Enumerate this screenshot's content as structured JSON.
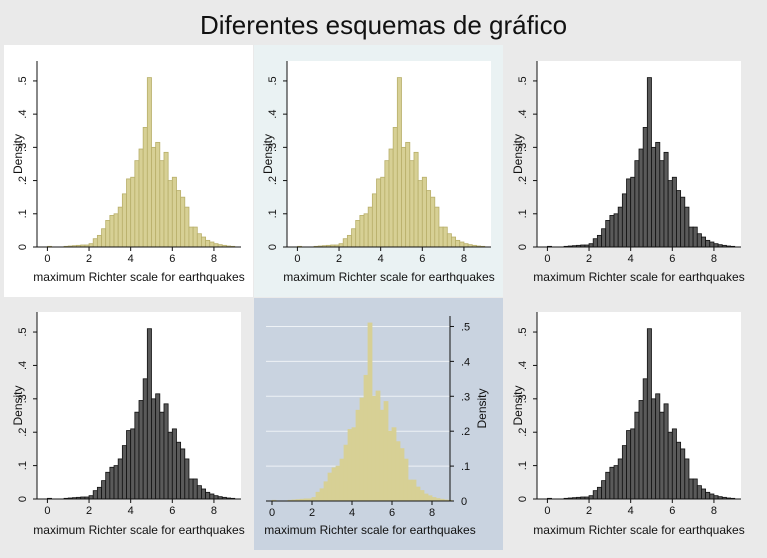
{
  "title": "Diferentes esquemas de gráfico",
  "chart_data": [
    {
      "type": "bar",
      "scheme": "s2color (white background, khaki bars)",
      "xlabel": "maximum Richter scale for earthquakes",
      "ylabel": "Density",
      "xticks": [
        "0",
        "2",
        "4",
        "6",
        "8"
      ],
      "yticks": [
        ".5",
        ".4",
        ".3",
        ".2",
        ".1",
        "0"
      ],
      "xlim": [
        -0.5,
        9.3
      ],
      "ylim": [
        0,
        0.56
      ],
      "yaxis_side": "left",
      "grid": false,
      "colors": {
        "panel": "#ffffff",
        "plot": "#ffffff",
        "bar_fill": "#d7d095",
        "bar_stroke": "#b8af6a",
        "text": "#111111"
      },
      "bin_width": 0.2,
      "bins_start": [
        0.0,
        0.2,
        0.4,
        0.6,
        0.8,
        1.0,
        1.2,
        1.4,
        1.6,
        1.8,
        2.0,
        2.2,
        2.4,
        2.6,
        2.8,
        3.0,
        3.2,
        3.4,
        3.6,
        3.8,
        4.0,
        4.2,
        4.4,
        4.6,
        4.8,
        5.0,
        5.2,
        5.4,
        5.6,
        5.8,
        6.0,
        6.2,
        6.4,
        6.6,
        6.8,
        7.0,
        7.2,
        7.4,
        7.6,
        7.8,
        8.0,
        8.2,
        8.4,
        8.6,
        8.8
      ],
      "density": [
        0.002,
        0.0,
        0.0,
        0.0,
        0.002,
        0.003,
        0.004,
        0.005,
        0.006,
        0.006,
        0.01,
        0.025,
        0.035,
        0.055,
        0.08,
        0.095,
        0.1,
        0.12,
        0.16,
        0.205,
        0.21,
        0.26,
        0.295,
        0.36,
        0.51,
        0.3,
        0.315,
        0.26,
        0.285,
        0.2,
        0.21,
        0.17,
        0.15,
        0.12,
        0.06,
        0.06,
        0.04,
        0.03,
        0.02,
        0.015,
        0.01,
        0.007,
        0.005,
        0.003,
        0.002
      ]
    },
    {
      "type": "bar",
      "scheme": "s2color (light blue background, khaki bars)",
      "xlabel": "maximum Richter scale for earthquakes",
      "ylabel": "Density",
      "xticks": [
        "0",
        "2",
        "4",
        "6",
        "8"
      ],
      "yticks": [
        ".5",
        ".4",
        ".3",
        ".2",
        ".1",
        "0"
      ],
      "xlim": [
        -0.5,
        9.3
      ],
      "ylim": [
        0,
        0.56
      ],
      "yaxis_side": "left",
      "grid": false,
      "colors": {
        "panel": "#eaf2f3",
        "plot": "#ffffff",
        "bar_fill": "#d7d095",
        "bar_stroke": "#b8af6a",
        "text": "#111111"
      },
      "bin_width": 0.2,
      "bins_start": [
        0.0,
        0.2,
        0.4,
        0.6,
        0.8,
        1.0,
        1.2,
        1.4,
        1.6,
        1.8,
        2.0,
        2.2,
        2.4,
        2.6,
        2.8,
        3.0,
        3.2,
        3.4,
        3.6,
        3.8,
        4.0,
        4.2,
        4.4,
        4.6,
        4.8,
        5.0,
        5.2,
        5.4,
        5.6,
        5.8,
        6.0,
        6.2,
        6.4,
        6.6,
        6.8,
        7.0,
        7.2,
        7.4,
        7.6,
        7.8,
        8.0,
        8.2,
        8.4,
        8.6,
        8.8
      ],
      "density": [
        0.002,
        0.0,
        0.0,
        0.0,
        0.002,
        0.003,
        0.004,
        0.005,
        0.006,
        0.006,
        0.01,
        0.025,
        0.035,
        0.055,
        0.08,
        0.095,
        0.1,
        0.12,
        0.16,
        0.205,
        0.21,
        0.26,
        0.295,
        0.36,
        0.51,
        0.3,
        0.315,
        0.26,
        0.285,
        0.2,
        0.21,
        0.17,
        0.15,
        0.12,
        0.06,
        0.06,
        0.04,
        0.03,
        0.02,
        0.015,
        0.01,
        0.007,
        0.005,
        0.003,
        0.002
      ]
    },
    {
      "type": "bar",
      "scheme": "s1mono (gray background, dark bars)",
      "xlabel": "maximum Richter scale for earthquakes",
      "ylabel": "Density",
      "xticks": [
        "0",
        "2",
        "4",
        "6",
        "8"
      ],
      "yticks": [
        ".5",
        ".4",
        ".3",
        ".2",
        ".1",
        "0"
      ],
      "xlim": [
        -0.5,
        9.3
      ],
      "ylim": [
        0,
        0.56
      ],
      "yaxis_side": "left",
      "grid": false,
      "colors": {
        "panel": "#eaeaea",
        "plot": "#ffffff",
        "bar_fill": "#5a5a5a",
        "bar_stroke": "#111111",
        "text": "#111111"
      },
      "bin_width": 0.2,
      "bins_start": [
        0.0,
        0.2,
        0.4,
        0.6,
        0.8,
        1.0,
        1.2,
        1.4,
        1.6,
        1.8,
        2.0,
        2.2,
        2.4,
        2.6,
        2.8,
        3.0,
        3.2,
        3.4,
        3.6,
        3.8,
        4.0,
        4.2,
        4.4,
        4.6,
        4.8,
        5.0,
        5.2,
        5.4,
        5.6,
        5.8,
        6.0,
        6.2,
        6.4,
        6.6,
        6.8,
        7.0,
        7.2,
        7.4,
        7.6,
        7.8,
        8.0,
        8.2,
        8.4,
        8.6,
        8.8
      ],
      "density": [
        0.002,
        0.0,
        0.0,
        0.0,
        0.002,
        0.003,
        0.004,
        0.005,
        0.006,
        0.006,
        0.01,
        0.025,
        0.035,
        0.055,
        0.08,
        0.095,
        0.1,
        0.12,
        0.16,
        0.205,
        0.21,
        0.26,
        0.295,
        0.36,
        0.51,
        0.3,
        0.315,
        0.26,
        0.285,
        0.2,
        0.21,
        0.17,
        0.15,
        0.12,
        0.06,
        0.06,
        0.04,
        0.03,
        0.02,
        0.015,
        0.01,
        0.007,
        0.005,
        0.003,
        0.002
      ]
    },
    {
      "type": "bar",
      "scheme": "s2mono (gray background, dark bars)",
      "xlabel": "maximum Richter scale for earthquakes",
      "ylabel": "Density",
      "xticks": [
        "0",
        "2",
        "4",
        "6",
        "8"
      ],
      "yticks": [
        ".5",
        ".4",
        ".3",
        ".2",
        ".1",
        "0"
      ],
      "xlim": [
        -0.5,
        9.3
      ],
      "ylim": [
        0,
        0.56
      ],
      "yaxis_side": "left",
      "grid": false,
      "colors": {
        "panel": "#eaeaea",
        "plot": "#ffffff",
        "bar_fill": "#5a5a5a",
        "bar_stroke": "#111111",
        "text": "#111111"
      },
      "bin_width": 0.2,
      "bins_start": [
        0.0,
        0.2,
        0.4,
        0.6,
        0.8,
        1.0,
        1.2,
        1.4,
        1.6,
        1.8,
        2.0,
        2.2,
        2.4,
        2.6,
        2.8,
        3.0,
        3.2,
        3.4,
        3.6,
        3.8,
        4.0,
        4.2,
        4.4,
        4.6,
        4.8,
        5.0,
        5.2,
        5.4,
        5.6,
        5.8,
        6.0,
        6.2,
        6.4,
        6.6,
        6.8,
        7.0,
        7.2,
        7.4,
        7.6,
        7.8,
        8.0,
        8.2,
        8.4,
        8.6,
        8.8
      ],
      "density": [
        0.002,
        0.0,
        0.0,
        0.0,
        0.002,
        0.003,
        0.004,
        0.005,
        0.006,
        0.006,
        0.01,
        0.025,
        0.035,
        0.055,
        0.08,
        0.095,
        0.1,
        0.12,
        0.16,
        0.205,
        0.21,
        0.26,
        0.295,
        0.36,
        0.51,
        0.3,
        0.315,
        0.26,
        0.285,
        0.2,
        0.21,
        0.17,
        0.15,
        0.12,
        0.06,
        0.06,
        0.04,
        0.03,
        0.02,
        0.015,
        0.01,
        0.007,
        0.005,
        0.003,
        0.002
      ]
    },
    {
      "type": "bar",
      "scheme": "economist (blue-gray background, gridlines, right y-axis)",
      "xlabel": "maximum Richter scale for earthquakes",
      "ylabel": "Density",
      "xticks": [
        "0",
        "2",
        "4",
        "6",
        "8"
      ],
      "yticks": [
        ".5",
        ".4",
        ".3",
        ".2",
        ".1",
        "0"
      ],
      "xlim": [
        -0.3,
        8.9
      ],
      "ylim": [
        0,
        0.53
      ],
      "yaxis_side": "right",
      "grid": true,
      "colors": {
        "panel": "#c9d3e0",
        "plot": "#c9d3e0",
        "bar_fill": "#d7d095",
        "bar_stroke": "#d7d095",
        "text": "#111111",
        "grid": "#eef2f6"
      },
      "bin_width": 0.2,
      "bins_start": [
        0.0,
        0.2,
        0.4,
        0.6,
        0.8,
        1.0,
        1.2,
        1.4,
        1.6,
        1.8,
        2.0,
        2.2,
        2.4,
        2.6,
        2.8,
        3.0,
        3.2,
        3.4,
        3.6,
        3.8,
        4.0,
        4.2,
        4.4,
        4.6,
        4.8,
        5.0,
        5.2,
        5.4,
        5.6,
        5.8,
        6.0,
        6.2,
        6.4,
        6.6,
        6.8,
        7.0,
        7.2,
        7.4,
        7.6,
        7.8,
        8.0,
        8.2,
        8.4,
        8.6,
        8.8
      ],
      "density": [
        0.002,
        0.0,
        0.0,
        0.0,
        0.002,
        0.003,
        0.004,
        0.005,
        0.006,
        0.006,
        0.01,
        0.025,
        0.035,
        0.055,
        0.08,
        0.095,
        0.1,
        0.12,
        0.16,
        0.205,
        0.21,
        0.26,
        0.295,
        0.36,
        0.51,
        0.3,
        0.315,
        0.26,
        0.285,
        0.2,
        0.21,
        0.17,
        0.15,
        0.12,
        0.06,
        0.06,
        0.04,
        0.03,
        0.02,
        0.015,
        0.01,
        0.007,
        0.005,
        0.003,
        0.002
      ]
    },
    {
      "type": "bar",
      "scheme": "s1manual (gray background, dark bars)",
      "xlabel": "maximum Richter scale for earthquakes",
      "ylabel": "Density",
      "xticks": [
        "0",
        "2",
        "4",
        "6",
        "8"
      ],
      "yticks": [
        ".5",
        ".4",
        ".3",
        ".2",
        ".1",
        "0"
      ],
      "xlim": [
        -0.5,
        9.3
      ],
      "ylim": [
        0,
        0.56
      ],
      "yaxis_side": "left",
      "grid": false,
      "colors": {
        "panel": "#eaeaea",
        "plot": "#ffffff",
        "bar_fill": "#5a5a5a",
        "bar_stroke": "#111111",
        "text": "#111111"
      },
      "bin_width": 0.2,
      "bins_start": [
        0.0,
        0.2,
        0.4,
        0.6,
        0.8,
        1.0,
        1.2,
        1.4,
        1.6,
        1.8,
        2.0,
        2.2,
        2.4,
        2.6,
        2.8,
        3.0,
        3.2,
        3.4,
        3.6,
        3.8,
        4.0,
        4.2,
        4.4,
        4.6,
        4.8,
        5.0,
        5.2,
        5.4,
        5.6,
        5.8,
        6.0,
        6.2,
        6.4,
        6.6,
        6.8,
        7.0,
        7.2,
        7.4,
        7.6,
        7.8,
        8.0,
        8.2,
        8.4,
        8.6,
        8.8
      ],
      "density": [
        0.002,
        0.0,
        0.0,
        0.0,
        0.002,
        0.003,
        0.004,
        0.005,
        0.006,
        0.006,
        0.01,
        0.025,
        0.035,
        0.055,
        0.08,
        0.095,
        0.1,
        0.12,
        0.16,
        0.205,
        0.21,
        0.26,
        0.295,
        0.36,
        0.51,
        0.3,
        0.315,
        0.26,
        0.285,
        0.2,
        0.21,
        0.17,
        0.15,
        0.12,
        0.06,
        0.06,
        0.04,
        0.03,
        0.02,
        0.015,
        0.01,
        0.007,
        0.005,
        0.003,
        0.002
      ]
    }
  ]
}
